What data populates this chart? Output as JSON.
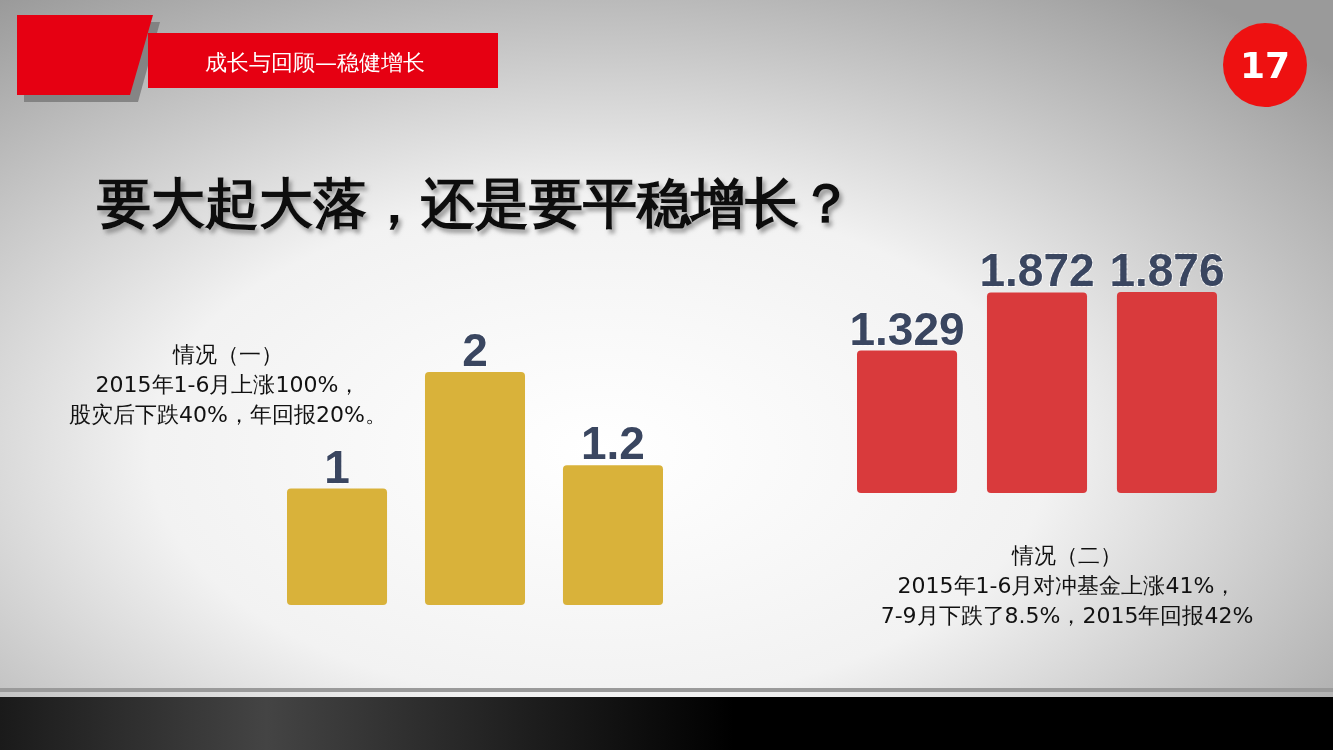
{
  "chart_data": [
    {
      "type": "bar",
      "title": "要大起大落，还是要平稳增长？",
      "categories": [
        null,
        null,
        null
      ],
      "values": [
        1,
        2,
        1.2
      ],
      "color": "#d9b23a",
      "data_labels": true,
      "annotations": [
        "成长与回顾—稳健增长",
        "17",
        "情况（一）",
        "2015年1-6月上涨100%，",
        "股灾后下跌40%，年回报20%。"
      ]
    },
    {
      "type": "bar",
      "categories": [
        null,
        null,
        null
      ],
      "values": [
        1.329,
        1.872,
        1.876
      ],
      "color": "#d93a3c",
      "data_labels": true,
      "annotations": [
        "情况（二）",
        "2015年1-6月对冲基金上涨41%，",
        "7-9月下跌了8.5%，2015年回报42%"
      ]
    }
  ]
}
